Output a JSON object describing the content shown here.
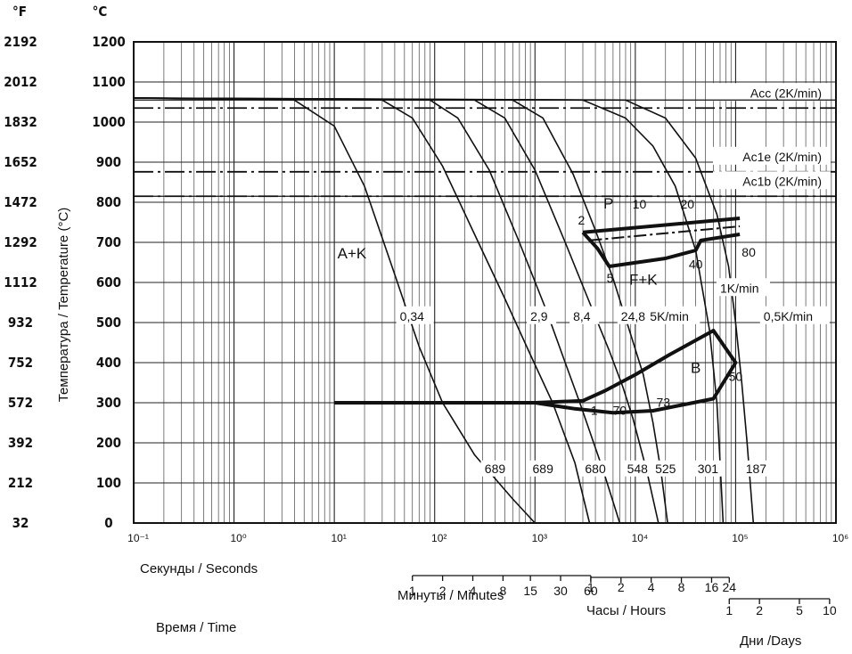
{
  "chart_data": {
    "type": "line",
    "x_scale": "log",
    "xlim": [
      0.1,
      1000000
    ],
    "ylim": [
      0,
      1200
    ],
    "grid": true,
    "x_tick_labels": [
      {
        "x": 0.1,
        "label": "10⁻¹"
      },
      {
        "x": 1,
        "label": "10⁰"
      },
      {
        "x": 10,
        "label": "10¹"
      },
      {
        "x": 100,
        "label": "10²"
      },
      {
        "x": 1000,
        "label": "10³"
      },
      {
        "x": 10000,
        "label": "10⁴"
      },
      {
        "x": 100000,
        "label": "10⁵"
      },
      {
        "x": 1000000,
        "label": "10⁶"
      }
    ],
    "y_celsius_ticks": [
      0,
      100,
      200,
      300,
      400,
      500,
      600,
      700,
      800,
      900,
      1000,
      1100,
      1200
    ],
    "y_fahrenheit_ticks": [
      "32",
      "212",
      "392",
      "572",
      "752",
      "932",
      "1112",
      "1292",
      "1472",
      "1652",
      "1832",
      "2012",
      "2192"
    ],
    "unit_f": "°F",
    "unit_c": "°C",
    "ylabel": "Температура / Temperature (°C)",
    "time_label": "Время / Time",
    "seconds_label": "Секунды / Seconds",
    "minutes": {
      "label": "Минуты / Minutes",
      "ticks": [
        1,
        2,
        4,
        8,
        15,
        30,
        60
      ]
    },
    "hours": {
      "label": "Часы / Hours",
      "ticks": [
        1,
        2,
        4,
        8,
        16,
        24
      ]
    },
    "days": {
      "label": "Дни /Days",
      "ticks": [
        1,
        2,
        5,
        10
      ]
    },
    "temperature_lines": [
      {
        "name": "Acc (2K/min)",
        "y": 1035
      },
      {
        "name": "Ac1e (2K/min)",
        "y": 876
      },
      {
        "name": "Ac1b (2K/min)",
        "y": 815
      }
    ],
    "cooling_curves": [
      {
        "label": "0,34",
        "hardness": "689",
        "points": [
          [
            0.1,
            1060
          ],
          [
            4,
            1055
          ],
          [
            10,
            990
          ],
          [
            20,
            840
          ],
          [
            40,
            620
          ],
          [
            70,
            440
          ],
          [
            120,
            300
          ],
          [
            250,
            170
          ],
          [
            600,
            60
          ],
          [
            1000,
            0
          ]
        ]
      },
      {
        "label": "2,9",
        "hardness": "689",
        "points": [
          [
            0.1,
            1060
          ],
          [
            30,
            1055
          ],
          [
            60,
            1010
          ],
          [
            120,
            890
          ],
          [
            250,
            720
          ],
          [
            500,
            560
          ],
          [
            900,
            420
          ],
          [
            1500,
            300
          ],
          [
            2500,
            150
          ],
          [
            3500,
            0
          ]
        ]
      },
      {
        "label": "8,4",
        "hardness": "680",
        "points": [
          [
            0.1,
            1060
          ],
          [
            90,
            1055
          ],
          [
            170,
            1010
          ],
          [
            350,
            880
          ],
          [
            700,
            700
          ],
          [
            1300,
            530
          ],
          [
            2000,
            400
          ],
          [
            2800,
            300
          ],
          [
            4800,
            130
          ],
          [
            7000,
            0
          ]
        ]
      },
      {
        "label": "24,8",
        "hardness": "548",
        "points": [
          [
            0.1,
            1060
          ],
          [
            250,
            1055
          ],
          [
            500,
            1010
          ],
          [
            1000,
            880
          ],
          [
            2000,
            700
          ],
          [
            3500,
            550
          ],
          [
            5500,
            430
          ],
          [
            7500,
            340
          ],
          [
            9500,
            260
          ],
          [
            13000,
            130
          ],
          [
            17000,
            0
          ]
        ]
      },
      {
        "label": "5K/min",
        "hardness": "525",
        "points": [
          [
            0.1,
            1060
          ],
          [
            600,
            1055
          ],
          [
            1200,
            1010
          ],
          [
            2400,
            870
          ],
          [
            4000,
            730
          ],
          [
            6000,
            610
          ],
          [
            8500,
            490
          ],
          [
            12000,
            370
          ],
          [
            15000,
            250
          ],
          [
            18000,
            130
          ],
          [
            21000,
            0
          ]
        ]
      },
      {
        "label": "1K/min",
        "hardness": "301",
        "points": [
          [
            0.1,
            1060
          ],
          [
            3000,
            1055
          ],
          [
            8000,
            1010
          ],
          [
            15000,
            940
          ],
          [
            25000,
            840
          ],
          [
            40000,
            680
          ],
          [
            55000,
            480
          ],
          [
            65000,
            300
          ],
          [
            70000,
            150
          ],
          [
            75000,
            0
          ]
        ]
      },
      {
        "label": "0,5K/min",
        "hardness": "187",
        "points": [
          [
            0.1,
            1060
          ],
          [
            8000,
            1055
          ],
          [
            20000,
            1010
          ],
          [
            40000,
            910
          ],
          [
            65000,
            770
          ],
          [
            85000,
            640
          ],
          [
            100000,
            500
          ],
          [
            115000,
            350
          ],
          [
            130000,
            200
          ],
          [
            150000,
            0
          ]
        ]
      }
    ],
    "curve_label_positions": [
      [
        45,
        505
      ],
      [
        900,
        505
      ],
      [
        2400,
        505
      ],
      [
        7200,
        505
      ],
      [
        14000,
        505
      ],
      [
        70000,
        575
      ],
      [
        190000,
        505
      ]
    ],
    "hardness_values": [
      {
        "label": "689",
        "x": 400,
        "y": 125
      },
      {
        "label": "689",
        "x": 1200,
        "y": 125
      },
      {
        "label": "680",
        "x": 4000,
        "y": 125
      },
      {
        "label": "548",
        "x": 10500,
        "y": 125
      },
      {
        "label": "525",
        "x": 20000,
        "y": 125
      },
      {
        "label": "301",
        "x": 53000,
        "y": 125
      },
      {
        "label": "187",
        "x": 160000,
        "y": 125
      }
    ],
    "regions": [
      {
        "label": "A+K",
        "x": 15,
        "y": 660
      },
      {
        "label": "P",
        "x": 5400,
        "y": 785
      },
      {
        "label": "F+K",
        "x": 12000,
        "y": 595
      },
      {
        "label": "B",
        "x": 40000,
        "y": 375
      }
    ],
    "phase_numbers": [
      {
        "label": "2",
        "x": 2900,
        "y": 745
      },
      {
        "label": "10",
        "x": 11000,
        "y": 785
      },
      {
        "label": "20",
        "x": 33000,
        "y": 785
      },
      {
        "label": "80",
        "x": 135000,
        "y": 665
      },
      {
        "label": "5",
        "x": 5600,
        "y": 600
      },
      {
        "label": "40",
        "x": 40000,
        "y": 635
      },
      {
        "label": "1",
        "x": 3900,
        "y": 270
      },
      {
        "label": "70",
        "x": 7000,
        "y": 270
      },
      {
        "label": "73",
        "x": 19000,
        "y": 290
      },
      {
        "label": "50",
        "x": 100000,
        "y": 355
      }
    ],
    "pearlite_start": [
      [
        3000,
        725
      ],
      [
        4200,
        685
      ],
      [
        5500,
        640
      ],
      [
        20000,
        660
      ],
      [
        40000,
        680
      ],
      [
        45000,
        705
      ],
      [
        110000,
        720
      ]
    ],
    "pearlite_start_top": [
      [
        3000,
        725
      ],
      [
        110000,
        760
      ]
    ],
    "pearlite_dash": [
      [
        3500,
        705
      ],
      [
        110000,
        740
      ]
    ],
    "bainite_boundary": [
      [
        10,
        300
      ],
      [
        1000,
        300
      ],
      [
        3000,
        305
      ],
      [
        5000,
        330
      ],
      [
        10000,
        370
      ],
      [
        22000,
        420
      ],
      [
        60000,
        480
      ],
      [
        100000,
        400
      ],
      [
        60000,
        310
      ],
      [
        15000,
        280
      ],
      [
        6000,
        275
      ],
      [
        2500,
        285
      ],
      [
        1000,
        300
      ]
    ]
  }
}
